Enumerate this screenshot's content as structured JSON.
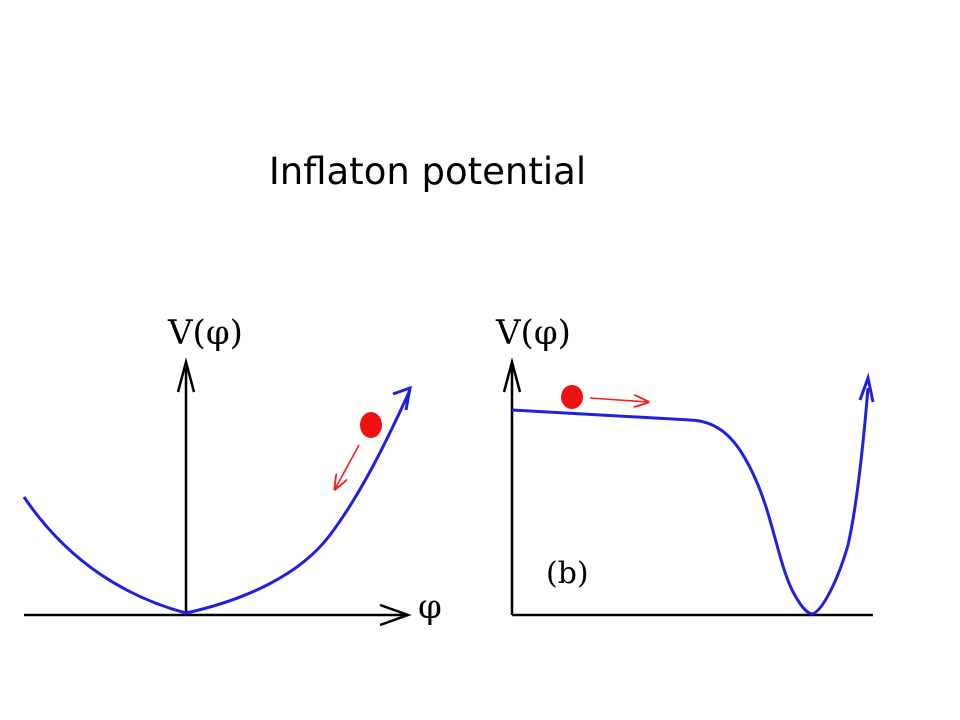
{
  "title": "Inflaton potential",
  "panels": [
    {
      "axis_label": "V(φ)",
      "x_label": "φ",
      "tag": ""
    },
    {
      "axis_label": "V(φ)",
      "x_label": "",
      "tag": "(b)"
    }
  ],
  "colors": {
    "potential": "#2020e0",
    "ball": "#ee1111",
    "motion_arrow": "#ee2222",
    "axis": "#000000"
  }
}
